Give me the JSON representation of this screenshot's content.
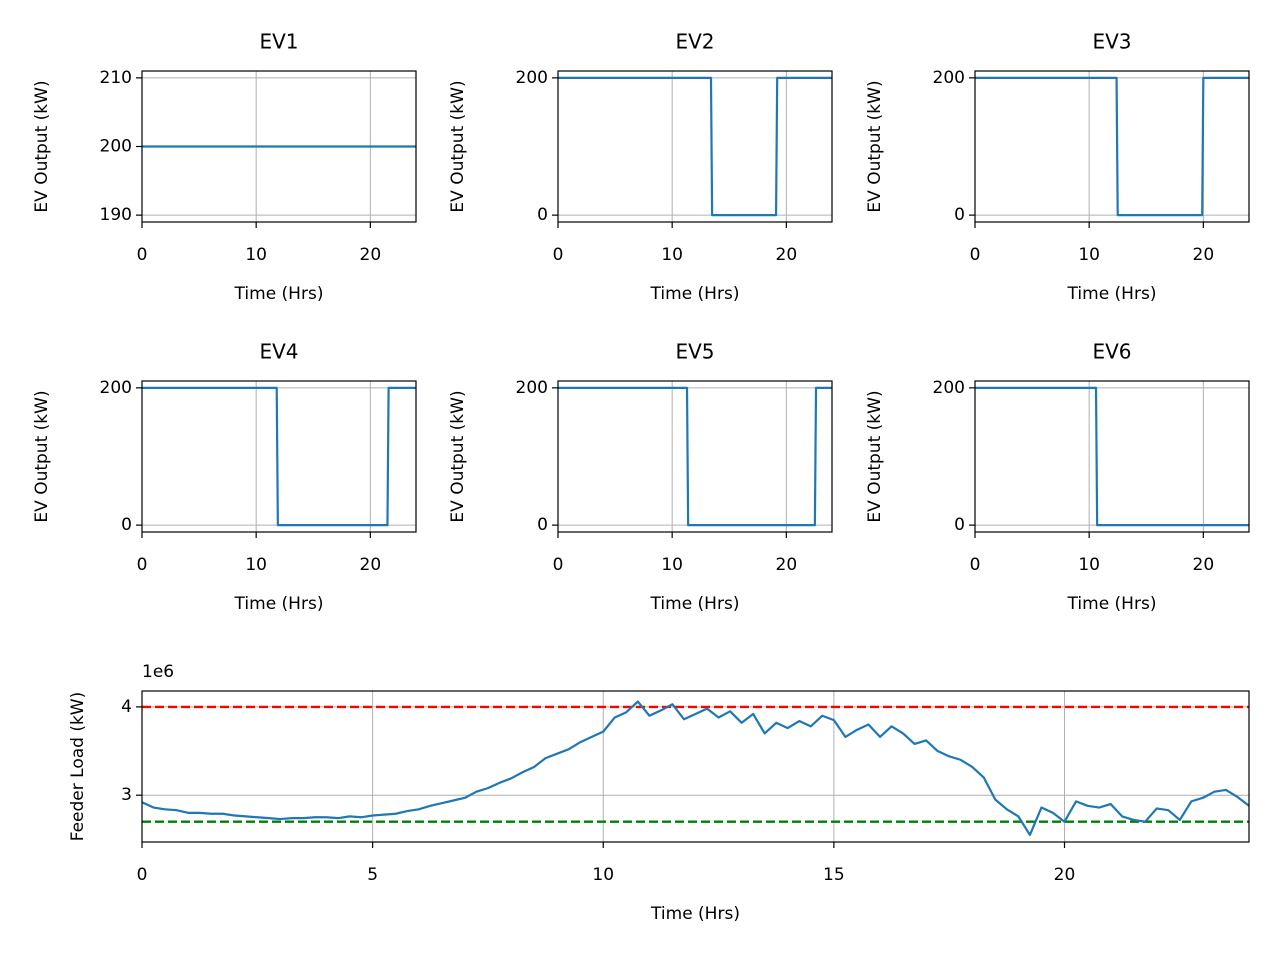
{
  "chart_data": [
    {
      "type": "line",
      "title": "EV1",
      "xlabel": "Time (Hrs)",
      "ylabel": "EV Output (kW)",
      "x": [
        0,
        24
      ],
      "values": [
        200,
        200
      ],
      "color": "#1f77b4",
      "xlim": [
        0,
        24
      ],
      "ylim": [
        189,
        211
      ],
      "xticks": [
        0,
        10,
        20
      ],
      "yticks": [
        190,
        200,
        210
      ],
      "grid": true
    },
    {
      "type": "line",
      "title": "EV2",
      "xlabel": "Time (Hrs)",
      "ylabel": "EV Output (kW)",
      "x": [
        0,
        13.4,
        13.5,
        19.1,
        19.2,
        24
      ],
      "values": [
        200,
        200,
        0,
        0,
        200,
        200
      ],
      "color": "#1f77b4",
      "xlim": [
        0,
        24
      ],
      "ylim": [
        -10,
        210
      ],
      "xticks": [
        0,
        10,
        20
      ],
      "yticks": [
        0,
        200
      ],
      "grid": true
    },
    {
      "type": "line",
      "title": "EV3",
      "xlabel": "Time (Hrs)",
      "ylabel": "EV Output (kW)",
      "x": [
        0,
        12.4,
        12.5,
        19.9,
        20.0,
        24
      ],
      "values": [
        200,
        200,
        0,
        0,
        200,
        200
      ],
      "color": "#1f77b4",
      "xlim": [
        0,
        24
      ],
      "ylim": [
        -10,
        210
      ],
      "xticks": [
        0,
        10,
        20
      ],
      "yticks": [
        0,
        200
      ],
      "grid": true
    },
    {
      "type": "line",
      "title": "EV4",
      "xlabel": "Time (Hrs)",
      "ylabel": "EV Output (kW)",
      "x": [
        0,
        11.8,
        11.9,
        21.5,
        21.6,
        24
      ],
      "values": [
        200,
        200,
        0,
        0,
        200,
        200
      ],
      "color": "#1f77b4",
      "xlim": [
        0,
        24
      ],
      "ylim": [
        -10,
        210
      ],
      "xticks": [
        0,
        10,
        20
      ],
      "yticks": [
        0,
        200
      ],
      "grid": true
    },
    {
      "type": "line",
      "title": "EV5",
      "xlabel": "Time (Hrs)",
      "ylabel": "EV Output (kW)",
      "x": [
        0,
        11.3,
        11.4,
        22.5,
        22.6,
        24
      ],
      "values": [
        200,
        200,
        0,
        0,
        200,
        200
      ],
      "color": "#1f77b4",
      "xlim": [
        0,
        24
      ],
      "ylim": [
        -10,
        210
      ],
      "xticks": [
        0,
        10,
        20
      ],
      "yticks": [
        0,
        200
      ],
      "grid": true
    },
    {
      "type": "line",
      "title": "EV6",
      "xlabel": "Time (Hrs)",
      "ylabel": "EV Output (kW)",
      "x": [
        0,
        10.6,
        10.7,
        24
      ],
      "values": [
        200,
        200,
        0,
        0
      ],
      "color": "#1f77b4",
      "xlim": [
        0,
        24
      ],
      "ylim": [
        -10,
        210
      ],
      "xticks": [
        0,
        10,
        20
      ],
      "yticks": [
        0,
        200
      ],
      "grid": true
    },
    {
      "type": "line",
      "xlabel": "Time (Hrs)",
      "ylabel": "Feeder Load (kW)",
      "offset_label": "1e6",
      "x": [
        0,
        0.25,
        0.5,
        0.75,
        1,
        1.25,
        1.5,
        1.75,
        2,
        2.25,
        2.5,
        2.75,
        3,
        3.25,
        3.5,
        3.75,
        4,
        4.25,
        4.5,
        4.75,
        5,
        5.25,
        5.5,
        5.75,
        6,
        6.25,
        6.5,
        6.75,
        7,
        7.25,
        7.5,
        7.75,
        8,
        8.25,
        8.5,
        8.75,
        9,
        9.25,
        9.5,
        9.75,
        10,
        10.25,
        10.5,
        10.75,
        11,
        11.25,
        11.5,
        11.75,
        12,
        12.25,
        12.5,
        12.75,
        13,
        13.25,
        13.5,
        13.75,
        14,
        14.25,
        14.5,
        14.75,
        15,
        15.25,
        15.5,
        15.75,
        16,
        16.25,
        16.5,
        16.75,
        17,
        17.25,
        17.5,
        17.75,
        18,
        18.25,
        18.5,
        18.75,
        19,
        19.25,
        19.5,
        19.75,
        20,
        20.25,
        20.5,
        20.75,
        21,
        21.25,
        21.5,
        21.75,
        22,
        22.25,
        22.5,
        22.75,
        23,
        23.25,
        23.5,
        23.75,
        24
      ],
      "values": [
        2.92,
        2.86,
        2.84,
        2.83,
        2.8,
        2.8,
        2.79,
        2.79,
        2.77,
        2.76,
        2.75,
        2.74,
        2.73,
        2.74,
        2.74,
        2.75,
        2.75,
        2.74,
        2.76,
        2.75,
        2.77,
        2.78,
        2.79,
        2.82,
        2.84,
        2.88,
        2.91,
        2.94,
        2.97,
        3.04,
        3.08,
        3.14,
        3.19,
        3.26,
        3.32,
        3.42,
        3.47,
        3.52,
        3.6,
        3.66,
        3.72,
        3.88,
        3.94,
        4.06,
        3.9,
        3.96,
        4.03,
        3.86,
        3.92,
        3.98,
        3.88,
        3.95,
        3.82,
        3.92,
        3.7,
        3.82,
        3.76,
        3.84,
        3.78,
        3.9,
        3.85,
        3.66,
        3.74,
        3.8,
        3.66,
        3.78,
        3.7,
        3.58,
        3.62,
        3.5,
        3.44,
        3.4,
        3.32,
        3.2,
        2.95,
        2.84,
        2.76,
        2.55,
        2.86,
        2.8,
        2.7,
        2.93,
        2.88,
        2.86,
        2.9,
        2.76,
        2.72,
        2.7,
        2.85,
        2.83,
        2.72,
        2.93,
        2.97,
        3.04,
        3.06,
        2.98,
        2.88
      ],
      "color": "#1f77b4",
      "xlim": [
        0,
        24
      ],
      "ylim": [
        2.47,
        4.18
      ],
      "xticks": [
        0,
        5,
        10,
        15,
        20
      ],
      "yticks": [
        3,
        4
      ],
      "grid": true,
      "hlines": [
        {
          "value": 4,
          "color": "#ff0000"
        },
        {
          "value": 2.7,
          "color": "#008000"
        }
      ]
    }
  ]
}
